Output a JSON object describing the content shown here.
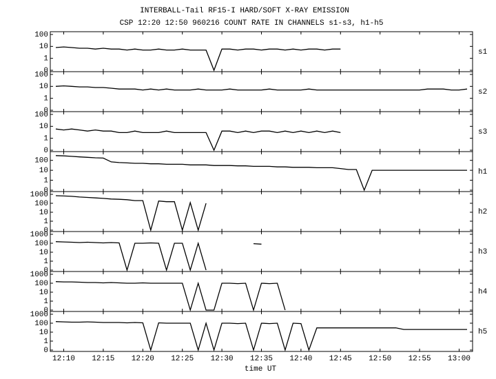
{
  "chart_data": {
    "type": "line",
    "title": "INTERBALL-Tail RF15-I HARD/SOFT X-RAY EMISSION",
    "subtitle": "CSP 12:20 12:50 960216  COUNT RATE IN CHANNELS s1-s3, h1-h5",
    "x_label": "time UT",
    "log_scale": true,
    "color": "#000000",
    "xlim": [
      8.3,
      61.7
    ],
    "xticks": [
      {
        "value": 10,
        "label": "12:10"
      },
      {
        "value": 15,
        "label": "12:15"
      },
      {
        "value": 20,
        "label": "12:20"
      },
      {
        "value": 25,
        "label": "12:25"
      },
      {
        "value": 30,
        "label": "12:30"
      },
      {
        "value": 35,
        "label": "12:35"
      },
      {
        "value": 40,
        "label": "12:40"
      },
      {
        "value": 45,
        "label": "12:45"
      },
      {
        "value": 50,
        "label": "12:50"
      },
      {
        "value": 55,
        "label": "12:55"
      },
      {
        "value": 60,
        "label": "13:00"
      }
    ],
    "x": [
      9,
      10,
      11,
      12,
      13,
      14,
      15,
      16,
      17,
      18,
      19,
      20,
      21,
      22,
      23,
      24,
      25,
      26,
      27,
      28,
      29,
      30,
      31,
      32,
      33,
      34,
      35,
      36,
      37,
      38,
      39,
      40,
      41,
      42,
      43,
      44,
      45,
      46,
      47,
      48,
      49,
      50,
      51,
      52,
      53,
      54,
      55,
      56,
      57,
      58,
      59,
      60,
      61
    ],
    "series": [
      {
        "name": "s1",
        "ylim": [
          0,
          100
        ],
        "yticks": [
          0,
          1,
          10,
          100
        ],
        "values": [
          8,
          9,
          8,
          7,
          7,
          6,
          7,
          6,
          6,
          5,
          6,
          5,
          5,
          6,
          5,
          5,
          6,
          5,
          5,
          5,
          0,
          6,
          6,
          5,
          6,
          6,
          5,
          6,
          6,
          5,
          6,
          5,
          6,
          6,
          5,
          6,
          6,
          null,
          null,
          null,
          null,
          null,
          null,
          null,
          null,
          null,
          null,
          null,
          null,
          null,
          null,
          null,
          null
        ]
      },
      {
        "name": "s2",
        "ylim": [
          0,
          100
        ],
        "yticks": [
          0,
          1,
          10,
          100
        ],
        "values": [
          10,
          11,
          10,
          9,
          9,
          8,
          8,
          7,
          6,
          6,
          6,
          5,
          6,
          5,
          6,
          5,
          5,
          5,
          6,
          5,
          5,
          5,
          6,
          5,
          5,
          5,
          5,
          6,
          5,
          5,
          5,
          5,
          6,
          5,
          5,
          5,
          5,
          5,
          5,
          5,
          5,
          5,
          5,
          5,
          5,
          5,
          5,
          6,
          6,
          6,
          5,
          5,
          6
        ]
      },
      {
        "name": "s3",
        "ylim": [
          0,
          100
        ],
        "yticks": [
          0,
          1,
          10,
          100
        ],
        "values": [
          6,
          5,
          6,
          5,
          4,
          5,
          4,
          4,
          3,
          3,
          4,
          3,
          3,
          3,
          4,
          3,
          3,
          3,
          3,
          3,
          0,
          4,
          4,
          3,
          4,
          3,
          4,
          4,
          3,
          4,
          3,
          4,
          3,
          4,
          3,
          4,
          3,
          null,
          null,
          null,
          null,
          null,
          null,
          null,
          null,
          null,
          null,
          null,
          null,
          null,
          null,
          null,
          null
        ]
      },
      {
        "name": "h1",
        "ylim": [
          0,
          400
        ],
        "yticks": [
          0,
          1,
          10,
          100
        ],
        "values": [
          300,
          280,
          250,
          220,
          200,
          180,
          170,
          70,
          60,
          55,
          50,
          50,
          45,
          45,
          40,
          40,
          40,
          35,
          35,
          35,
          30,
          30,
          30,
          28,
          28,
          25,
          25,
          25,
          22,
          22,
          20,
          20,
          20,
          18,
          18,
          18,
          15,
          12,
          12,
          0,
          10,
          10,
          10,
          10,
          10,
          10,
          10,
          10,
          10,
          10,
          10,
          10,
          10
        ]
      },
      {
        "name": "h2",
        "ylim": [
          0,
          1000
        ],
        "yticks": [
          0,
          1,
          10,
          100,
          1000
        ],
        "values": [
          700,
          650,
          600,
          500,
          450,
          400,
          350,
          300,
          280,
          250,
          200,
          200,
          0,
          180,
          150,
          150,
          0,
          120,
          0,
          100,
          null,
          null,
          null,
          null,
          null,
          null,
          null,
          null,
          null,
          null,
          null,
          null,
          null,
          null,
          null,
          null,
          null,
          null,
          null,
          null,
          null,
          null,
          null,
          null,
          null,
          null,
          null,
          null,
          null,
          null,
          null,
          null,
          null
        ]
      },
      {
        "name": "h3",
        "ylim": [
          0,
          1000
        ],
        "yticks": [
          0,
          1,
          10,
          100,
          1000
        ],
        "values": [
          150,
          140,
          130,
          120,
          130,
          120,
          110,
          120,
          110,
          0,
          100,
          100,
          110,
          100,
          0,
          100,
          100,
          0,
          100,
          0,
          null,
          null,
          null,
          null,
          null,
          90,
          80,
          null,
          null,
          null,
          null,
          null,
          null,
          null,
          null,
          null,
          null,
          null,
          null,
          null,
          null,
          null,
          null,
          null,
          null,
          null,
          null,
          null,
          null,
          null,
          null,
          null,
          null
        ]
      },
      {
        "name": "h4",
        "ylim": [
          0,
          1000
        ],
        "yticks": [
          0,
          1,
          10,
          100,
          1000
        ],
        "values": [
          150,
          140,
          140,
          130,
          120,
          120,
          110,
          120,
          110,
          100,
          100,
          110,
          100,
          100,
          100,
          100,
          100,
          0,
          100,
          0,
          0,
          100,
          100,
          90,
          100,
          0,
          100,
          90,
          100,
          0,
          null,
          null,
          null,
          null,
          null,
          null,
          null,
          null,
          null,
          null,
          null,
          null,
          null,
          null,
          null,
          null,
          null,
          null,
          null,
          null,
          null,
          null,
          null
        ]
      },
      {
        "name": "h5",
        "ylim": [
          0,
          1000
        ],
        "yticks": [
          0,
          1,
          10,
          100,
          1000
        ],
        "values": [
          150,
          140,
          130,
          130,
          140,
          130,
          120,
          120,
          120,
          110,
          120,
          110,
          0,
          110,
          100,
          100,
          100,
          100,
          0,
          100,
          0,
          100,
          100,
          90,
          100,
          0,
          100,
          90,
          100,
          0,
          100,
          90,
          0,
          30,
          30,
          30,
          30,
          30,
          30,
          30,
          30,
          30,
          30,
          30,
          20,
          20,
          20,
          20,
          20,
          20,
          20,
          20,
          20
        ]
      }
    ]
  }
}
